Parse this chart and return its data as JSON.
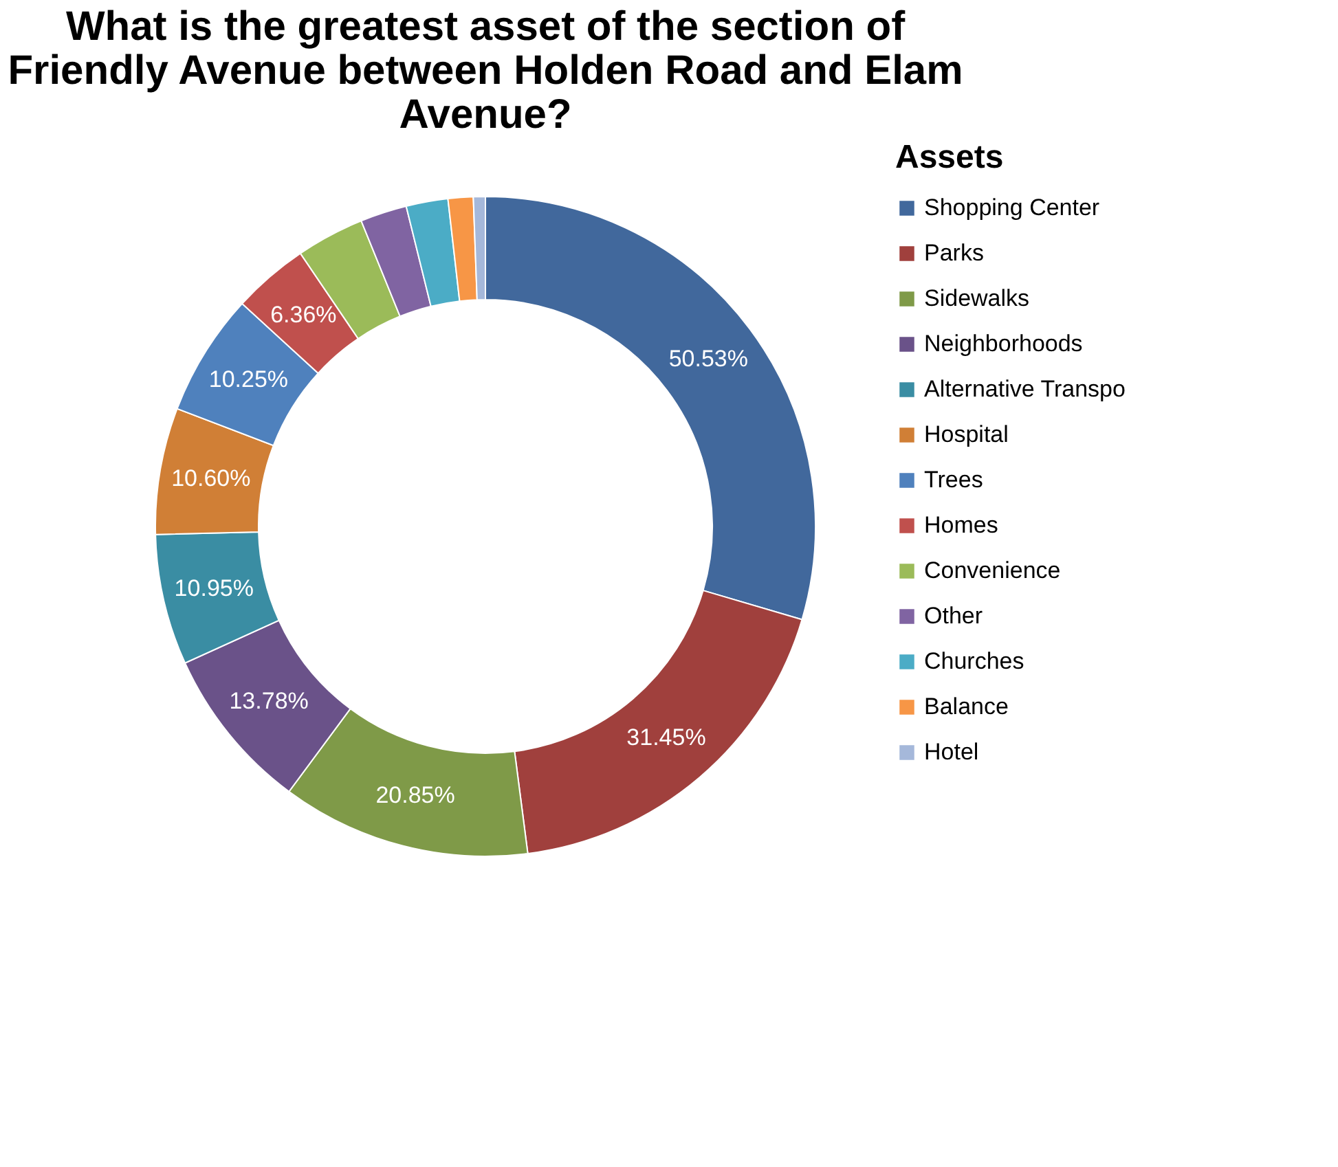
{
  "chart_data": {
    "type": "donut",
    "title": "What is the greatest asset of the section of Friendly Avenue between Holden Road and Elam Avenue?",
    "legend_title": "Assets",
    "legend": "right",
    "categories": [
      "Shopping Center",
      "Parks",
      "Sidewalks",
      "Neighborhoods",
      "Alternative Transpo",
      "Hospital",
      "Trees",
      "Homes",
      "Convenience",
      "Other",
      "Churches",
      "Balance",
      "Hotel"
    ],
    "values": [
      50.53,
      31.45,
      20.85,
      13.78,
      10.95,
      10.6,
      10.25,
      6.36,
      5.7,
      3.9,
      3.5,
      2.1,
      1.0
    ],
    "value_labels": [
      "50.53%",
      "31.45%",
      "20.85%",
      "13.78%",
      "10.95%",
      "10.60%",
      "10.25%",
      "6.36%",
      null,
      null,
      null,
      null,
      null
    ],
    "colors": [
      "#41689C",
      "#A0403D",
      "#7F9A48",
      "#6A5289",
      "#3A8DA3",
      "#D07F36",
      "#4F81BD",
      "#C0504D",
      "#9BBB59",
      "#8064A2",
      "#4BACC6",
      "#F79646",
      "#A5B8DA"
    ]
  }
}
